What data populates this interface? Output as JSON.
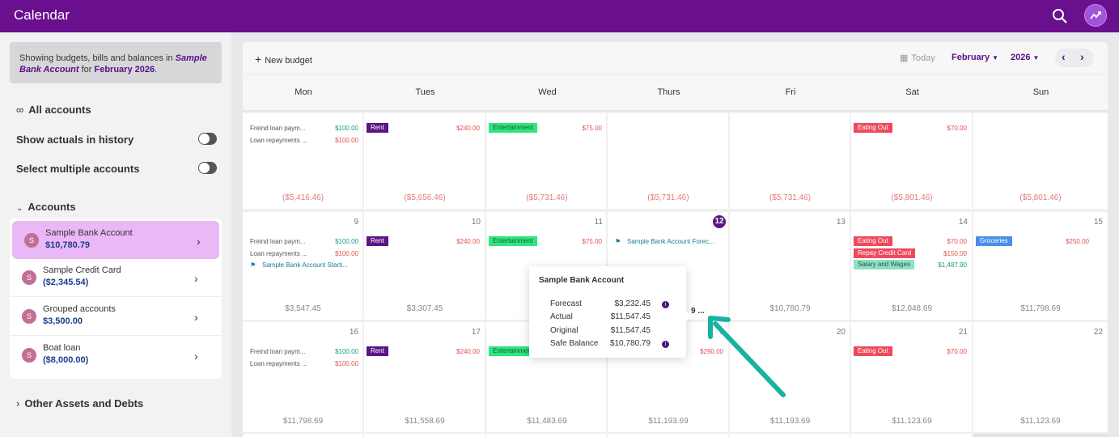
{
  "app": {
    "title": "Calendar"
  },
  "sidebar": {
    "notice_prefix": "Showing budgets, bills and balances in ",
    "notice_account": "Sample Bank Account",
    "notice_mid": " for ",
    "notice_period": "February 2026",
    "notice_suffix": ".",
    "all_accounts": "All accounts",
    "show_actuals": "Show actuals in history",
    "select_multiple": "Select multiple accounts",
    "accounts_heading": "Accounts",
    "accounts": [
      {
        "initial": "S",
        "name": "Sample Bank Account",
        "balance": "$10,780.79"
      },
      {
        "initial": "S",
        "name": "Sample Credit Card",
        "balance": "($2,345.54)"
      },
      {
        "initial": "S",
        "name": "Grouped accounts",
        "balance": "$3,500.00"
      },
      {
        "initial": "S",
        "name": "Boat loan",
        "balance": "($8,000.00)"
      }
    ],
    "other_assets": "Other Assets and Debts"
  },
  "toolbar": {
    "new_budget": "New budget",
    "today": "Today",
    "month": "February",
    "year": "2026"
  },
  "days": [
    "Mon",
    "Tues",
    "Wed",
    "Thurs",
    "Fri",
    "Sat",
    "Sun"
  ],
  "weeks": [
    {
      "cells": [
        {
          "num": "",
          "total": "($5,416.46)",
          "neg": true,
          "events": [
            {
              "kind": "text",
              "name": "Freind loan paym...",
              "amount": "$100.00",
              "pos": true
            },
            {
              "kind": "text",
              "name": "Loan repayments ...",
              "amount": "$100.00",
              "pos": false
            }
          ]
        },
        {
          "num": "",
          "total": "($5,656.46)",
          "neg": true,
          "events": [
            {
              "kind": "tag",
              "color": "purple",
              "name": "Rent",
              "amount": "$240.00",
              "pos": false
            }
          ]
        },
        {
          "num": "",
          "total": "($5,731.46)",
          "neg": true,
          "events": [
            {
              "kind": "tag",
              "color": "green",
              "name": "Entertainment",
              "amount": "$75.00",
              "pos": false
            }
          ]
        },
        {
          "num": "",
          "total": "($5,731.46)",
          "neg": true,
          "events": []
        },
        {
          "num": "",
          "total": "($5,731.46)",
          "neg": true,
          "events": []
        },
        {
          "num": "",
          "total": "($5,801.46)",
          "neg": true,
          "events": [
            {
              "kind": "tag",
              "color": "red",
              "name": "Eating Out",
              "amount": "$70.00",
              "pos": false
            }
          ]
        },
        {
          "num": "",
          "total": "($5,801.46)",
          "neg": true,
          "events": []
        }
      ]
    },
    {
      "cells": [
        {
          "num": "9",
          "total": "$3,547.45",
          "neg": false,
          "events": [
            {
              "kind": "text",
              "name": "Freind loan paym...",
              "amount": "$100.00",
              "pos": true
            },
            {
              "kind": "text",
              "name": "Loan repayments ...",
              "amount": "$100.00",
              "pos": false
            },
            {
              "kind": "flag",
              "name": "Sample Bank Account Starti...",
              "amount": ""
            }
          ]
        },
        {
          "num": "10",
          "total": "$3,307.45",
          "neg": false,
          "events": [
            {
              "kind": "tag",
              "color": "purple",
              "name": "Rent",
              "amount": "$240.00",
              "pos": false
            }
          ]
        },
        {
          "num": "11",
          "total": "",
          "neg": false,
          "events": [
            {
              "kind": "tag",
              "color": "green",
              "name": "Entertainment",
              "amount": "$75.00",
              "pos": false
            }
          ]
        },
        {
          "num": "12",
          "current": true,
          "total": "",
          "neg": false,
          "events": [
            {
              "kind": "flag",
              "name": "Sample Bank Account Forec...",
              "amount": ""
            }
          ]
        },
        {
          "num": "13",
          "total": "$10,780.79",
          "neg": false,
          "events": []
        },
        {
          "num": "14",
          "total": "$12,048.69",
          "neg": false,
          "events": [
            {
              "kind": "tag",
              "color": "red",
              "name": "Eating Out",
              "amount": "$70.00",
              "pos": false
            },
            {
              "kind": "tag",
              "color": "red",
              "name": "Repay Credit Card",
              "amount": "$150.00",
              "pos": false
            },
            {
              "kind": "tag",
              "color": "teal",
              "name": "Salary and Wages",
              "amount": "$1,487.90",
              "pos": true
            }
          ]
        },
        {
          "num": "15",
          "total": "$11,798.69",
          "neg": false,
          "events": [
            {
              "kind": "tag",
              "color": "blue",
              "name": "Groceries",
              "amount": "$250.00",
              "pos": false
            }
          ]
        }
      ]
    },
    {
      "cells": [
        {
          "num": "16",
          "total": "$11,798.69",
          "neg": false,
          "events": [
            {
              "kind": "text",
              "name": "Freind loan paym...",
              "amount": "$100.00",
              "pos": true
            },
            {
              "kind": "text",
              "name": "Loan repayments ...",
              "amount": "$100.00",
              "pos": false
            }
          ]
        },
        {
          "num": "17",
          "total": "$11,558.69",
          "neg": false,
          "events": [
            {
              "kind": "tag",
              "color": "purple",
              "name": "Rent",
              "amount": "$240.00",
              "pos": false
            }
          ]
        },
        {
          "num": "",
          "total": "$11,483.69",
          "neg": false,
          "events": [
            {
              "kind": "tag",
              "color": "green",
              "name": "Entertainment",
              "amount": "",
              "pos": false
            }
          ]
        },
        {
          "num": "9",
          "total": "$11,193.69",
          "neg": false,
          "events": [
            {
              "kind": "text",
              "name": "",
              "amount": "$290.00",
              "pos": false
            }
          ]
        },
        {
          "num": "20",
          "total": "$11,193.69",
          "neg": false,
          "events": []
        },
        {
          "num": "21",
          "total": "$11,123.69",
          "neg": false,
          "events": [
            {
              "kind": "tag",
              "color": "red",
              "name": "Eating Out",
              "amount": "$70.00",
              "pos": false
            }
          ]
        },
        {
          "num": "22",
          "total": "$11,123.69",
          "neg": false,
          "events": []
        }
      ]
    }
  ],
  "overflow_more": "9 ...",
  "popup": {
    "title": "Sample Bank Account",
    "rows": [
      {
        "label": "Forecast",
        "value": "$3,232.45",
        "info": true
      },
      {
        "label": "Actual",
        "value": "$11,547.45",
        "info": false
      },
      {
        "label": "Original",
        "value": "$11,547.45",
        "info": false
      },
      {
        "label": "Safe Balance",
        "value": "$10,780.79",
        "info": true
      }
    ]
  },
  "colors": {
    "brand": "#6a0f8e",
    "accent": "#5b1585",
    "arrow": "#17b3a0"
  }
}
